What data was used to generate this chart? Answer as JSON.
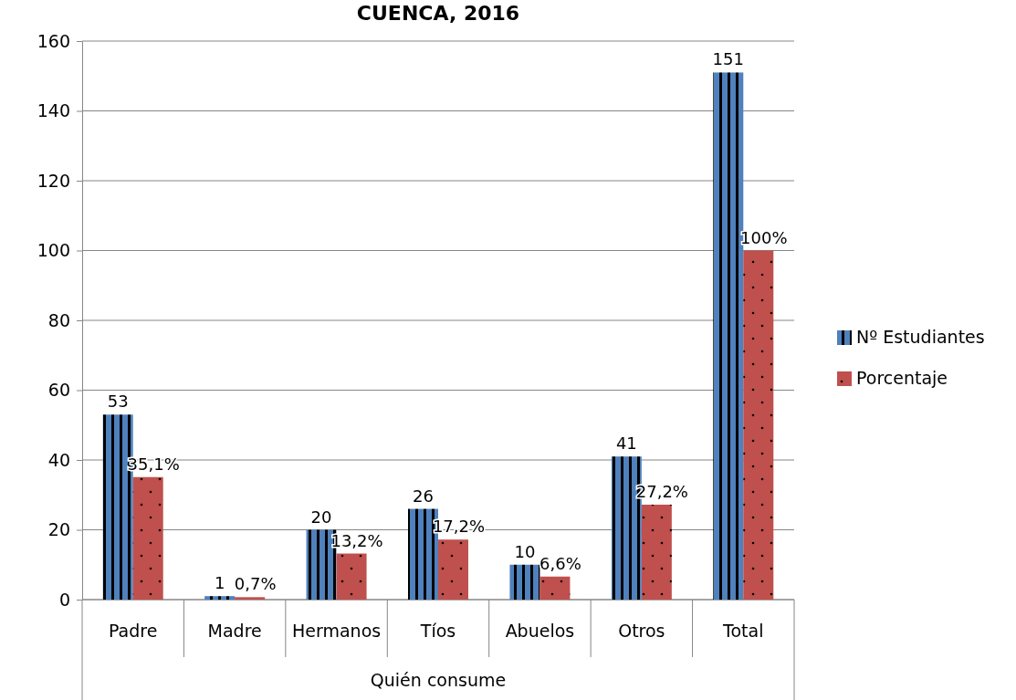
{
  "chart_data": {
    "type": "bar",
    "title": "CUENCA, 2016",
    "xlabel": "Quién consume",
    "categories": [
      "Padre",
      "Madre",
      "Hermanos",
      "Tíos",
      "Abuelos",
      "Otros",
      "Total"
    ],
    "series": [
      {
        "name": "Nº Estudiantes",
        "color": "#4f81bd",
        "values": [
          53,
          1,
          20,
          26,
          10,
          41,
          151
        ],
        "value_labels": [
          "53",
          "1",
          "20",
          "26",
          "10",
          "41",
          "151"
        ]
      },
      {
        "name": "Porcentaje",
        "color": "#c0504d",
        "values": [
          35.1,
          0.7,
          13.2,
          17.2,
          6.6,
          27.2,
          100
        ],
        "value_labels": [
          "35,1%",
          "0,7%",
          "13,2%",
          "17,2%",
          "6,6%",
          "27,2%",
          "100%"
        ]
      }
    ],
    "ylim": [
      0,
      160
    ],
    "yticks": [
      0,
      20,
      40,
      60,
      80,
      100,
      120,
      140,
      160
    ],
    "grid": "y",
    "legend": "right"
  }
}
